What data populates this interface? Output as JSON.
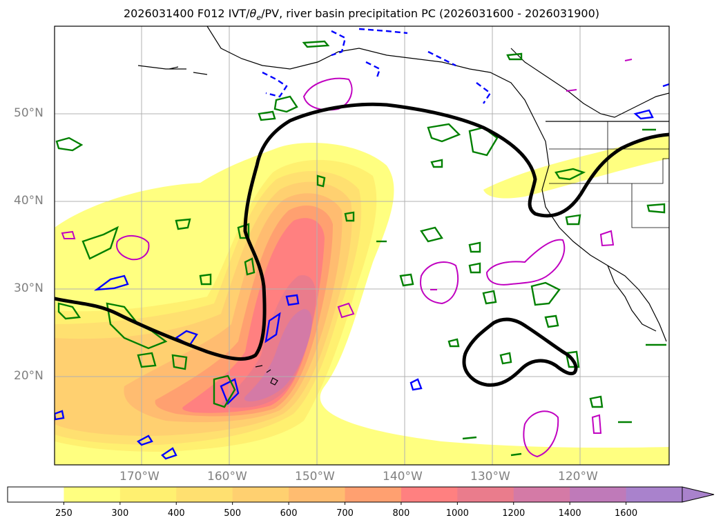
{
  "title": {
    "prefix": "2026031400 F012 IVT/",
    "theta": "θ",
    "sub": "e",
    "suffix": "/PV, river basin precipitation PC (2026031600 - 2026031900)"
  },
  "axes": {
    "lat_labels": [
      "50°N",
      "40°N",
      "30°N",
      "20°N"
    ],
    "lon_labels": [
      "170°W",
      "160°W",
      "150°W",
      "140°W",
      "130°W",
      "120°W"
    ]
  },
  "colorbar": {
    "levels": [
      "250",
      "300",
      "400",
      "500",
      "600",
      "700",
      "800",
      "1000",
      "1200",
      "1400",
      "1600"
    ],
    "colors": [
      "#ffffff",
      "#ffff80",
      "#fff070",
      "#ffe070",
      "#ffd070",
      "#ffbc70",
      "#ffa070",
      "#ff8080",
      "#ea7c8c",
      "#d47aa6",
      "#bf7ab9",
      "#a982cc"
    ],
    "extend": "max"
  },
  "colors": {
    "ivt_low": "#ffff80",
    "ivt_high": "#d47aa6",
    "pv_contour": "#000000",
    "green_contour": "#008000",
    "blue_contour": "#0000ff",
    "magenta_contour": "#c000c0",
    "gridline": "#b0b0b0",
    "coastline": "#000000"
  }
}
